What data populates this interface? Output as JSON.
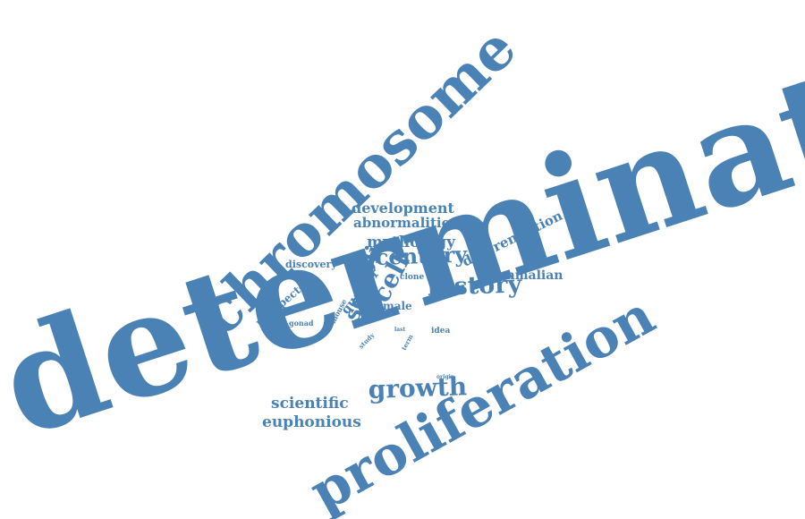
{
  "color": "#4a82b6",
  "words": {
    "determination": "determination",
    "chromosome": "chromosome",
    "proliferation": "proliferation",
    "growth": "growth",
    "history": "history",
    "century": "century",
    "cell": "cell",
    "sertoli": "sertoli",
    "mythology": "mythology",
    "development": "development",
    "abnormalities": "abnormalities",
    "differentiation": "differentiation",
    "mammalian": "mammalian",
    "scientific": "scientific",
    "euphonious": "euphonious",
    "quarter": "quarter",
    "unexpected": "unexpected",
    "discovery": "discovery",
    "male": "male",
    "clone": "clone",
    "mouse": "mouse",
    "gonad": "gonad",
    "study": "study",
    "term": "term",
    "idea": "idea",
    "last": "last",
    "origin": "origin"
  }
}
